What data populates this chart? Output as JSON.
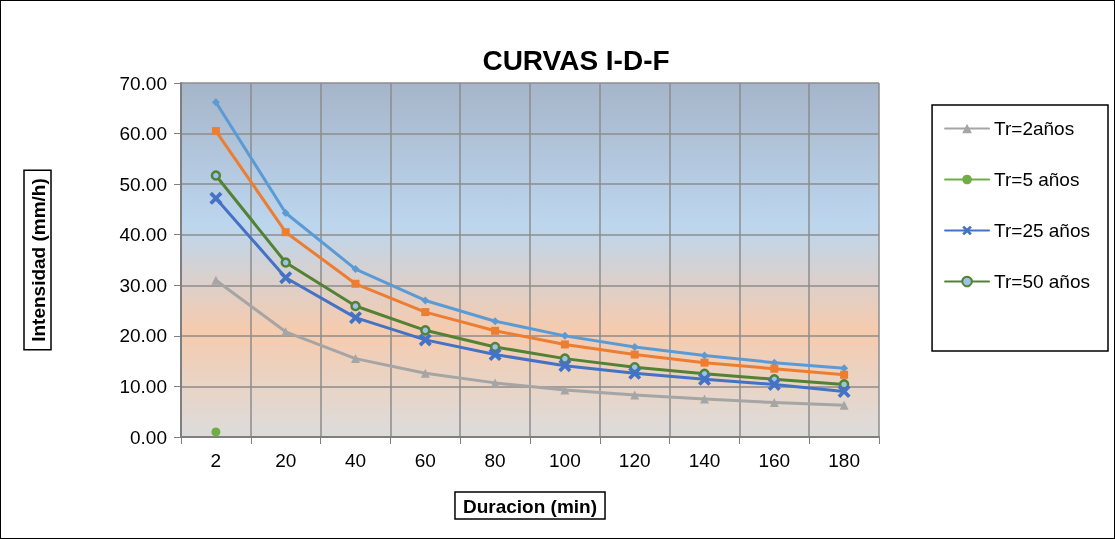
{
  "chart_data": {
    "type": "line",
    "title": "CURVAS I-D-F",
    "xlabel": "Duracion (min)",
    "ylabel": "Intensidad (mm/h)",
    "categories": [
      "2",
      "20",
      "40",
      "60",
      "80",
      "100",
      "120",
      "140",
      "160",
      "180"
    ],
    "ylim": [
      0,
      70
    ],
    "yticks": [
      {
        "value": 0,
        "label": "0.00"
      },
      {
        "value": 10,
        "label": "10.00"
      },
      {
        "value": 20,
        "label": "20.00"
      },
      {
        "value": 30,
        "label": "30.00"
      },
      {
        "value": 40,
        "label": "40.00"
      },
      {
        "value": 50,
        "label": "50.00"
      },
      {
        "value": 60,
        "label": "60.00"
      },
      {
        "value": 70,
        "label": "70.00"
      }
    ],
    "grid": true,
    "legend": "right",
    "series": [
      {
        "color": "#5b9bd5",
        "marker": "diamond",
        "values": [
          66.2,
          44.3,
          33.2,
          27.0,
          22.9,
          20.0,
          17.8,
          16.1,
          14.7,
          13.6
        ]
      },
      {
        "color": "#ed7d31",
        "marker": "square",
        "values": [
          60.5,
          40.5,
          30.3,
          24.7,
          21.0,
          18.3,
          16.3,
          14.7,
          13.5,
          12.3
        ]
      },
      {
        "name": "Tr=2años",
        "color": "#a5a5a5",
        "marker": "triangle",
        "values": [
          31.0,
          20.8,
          15.5,
          12.6,
          10.7,
          9.3,
          8.3,
          7.5,
          6.8,
          6.3
        ]
      },
      {
        "name": "Tr=5 años",
        "color": "#70ad47",
        "marker": "circle",
        "values": [
          1.0,
          null,
          null,
          null,
          null,
          null,
          null,
          null,
          null,
          null
        ]
      },
      {
        "name": "Tr=25 años",
        "color": "#4472c4",
        "marker": "cross",
        "values": [
          47.2,
          31.5,
          23.6,
          19.2,
          16.3,
          14.1,
          12.6,
          11.4,
          10.4,
          9.0
        ]
      },
      {
        "name": "Tr=50 años",
        "color": "#548235",
        "marker": "circle",
        "values": [
          51.7,
          34.5,
          25.9,
          21.1,
          17.8,
          15.5,
          13.8,
          12.5,
          11.4,
          10.4
        ]
      }
    ]
  }
}
